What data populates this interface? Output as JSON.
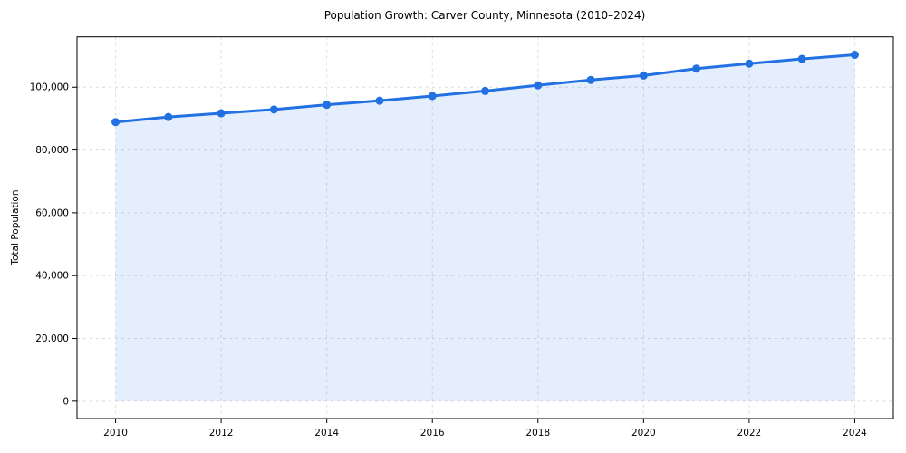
{
  "chart_data": {
    "type": "line",
    "title": "Population Growth: Carver County, Minnesota (2010–2024)",
    "xlabel": "",
    "ylabel": "Total Population",
    "x": [
      2010,
      2011,
      2012,
      2013,
      2014,
      2015,
      2016,
      2017,
      2018,
      2019,
      2020,
      2021,
      2022,
      2023,
      2024
    ],
    "series": [
      {
        "name": "Total Population",
        "values": [
          88900,
          90500,
          91700,
          92900,
          94400,
          95700,
          97200,
          98800,
          100600,
          102300,
          103700,
          105900,
          107500,
          109000,
          110300
        ]
      }
    ],
    "x_ticks": [
      {
        "value": 2010,
        "label": "2010"
      },
      {
        "value": 2012,
        "label": "2012"
      },
      {
        "value": 2014,
        "label": "2014"
      },
      {
        "value": 2016,
        "label": "2016"
      },
      {
        "value": 2018,
        "label": "2018"
      },
      {
        "value": 2020,
        "label": "2020"
      },
      {
        "value": 2022,
        "label": "2022"
      },
      {
        "value": 2024,
        "label": "2024"
      }
    ],
    "y_ticks": [
      {
        "value": 0,
        "label": "0"
      },
      {
        "value": 20000,
        "label": "20,000"
      },
      {
        "value": 40000,
        "label": "40,000"
      },
      {
        "value": 60000,
        "label": "60,000"
      },
      {
        "value": 80000,
        "label": "80,000"
      },
      {
        "value": 100000,
        "label": "100,000"
      }
    ],
    "xlim": [
      2009.27,
      2024.73
    ],
    "ylim": [
      -5525,
      116025
    ],
    "grid": true,
    "grid_style": "dashed",
    "legend_position": "none",
    "area_fill_baseline": 0,
    "line_color": "#2171e3",
    "marker_color": "#2171e3",
    "fill_color": "#2171e3",
    "fill_opacity": 0.12,
    "grid_color": "#dcdcdc",
    "spine_color": "#000000",
    "tick_color": "#000000",
    "text_color": "#000000"
  }
}
